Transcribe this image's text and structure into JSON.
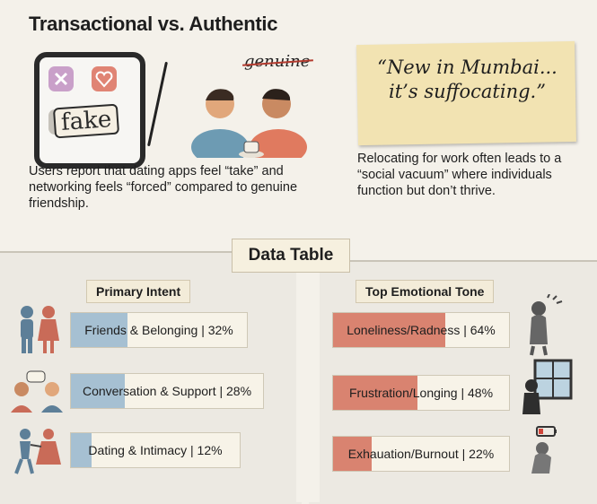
{
  "title": "Transactional vs. Authentic",
  "left_illustration": {
    "stamp": "fake"
  },
  "middle_illustration": {
    "annotation": "genuine"
  },
  "quote": "“New in Mumbai... it’s suffocating.”",
  "left_caption": "Users report that dating apps feel “take” and networking feels “forced” compared to genuine friendship.",
  "right_caption": "Relocating for work often leads to a “social vacuum” where individuals function but don’t thrive.",
  "table_title": "Data Table",
  "primary_intent": {
    "heading": "Primary Intent",
    "items": [
      {
        "label": "Friends & Belonging | 32%",
        "percent": 32
      },
      {
        "label": "Conversation & Support | 28%",
        "percent": 28
      },
      {
        "label": "Dating & Intimacy | 12%",
        "percent": 12
      }
    ]
  },
  "emotional_tone": {
    "heading": "Top Emotional Tone",
    "items": [
      {
        "label": "Loneliness/Radness | 64%",
        "percent": 64
      },
      {
        "label": "Frustration/Longing | 48%",
        "percent": 48
      },
      {
        "label": "Exhauation/Burnout | 22%",
        "percent": 22
      }
    ]
  },
  "colors": {
    "blue": "#a6c0d2",
    "red": "#d98370",
    "paper": "#f2e3b2"
  }
}
